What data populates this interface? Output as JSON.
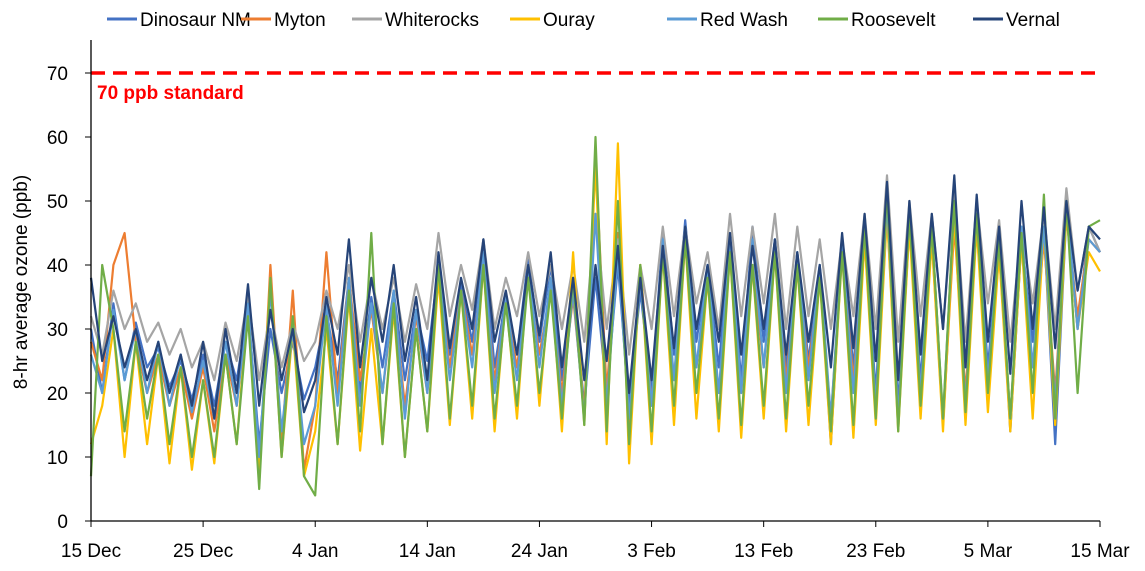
{
  "chart_data": {
    "type": "line",
    "title": "",
    "xlabel": "",
    "ylabel": "8-hr average ozone (ppb)",
    "ylim": [
      0,
      70
    ],
    "yticks": [
      0,
      10,
      20,
      30,
      40,
      50,
      60,
      70
    ],
    "xticks": [
      "15 Dec",
      "25 Dec",
      "4 Jan",
      "14 Jan",
      "24 Jan",
      "3 Feb",
      "13 Feb",
      "23 Feb",
      "5 Mar",
      "15 Mar"
    ],
    "grid": false,
    "legend_position": "top",
    "reference_line": {
      "value": 70,
      "label": "70 ppb standard",
      "color": "#FF0000",
      "style": "dashed"
    },
    "x": [
      "15 Dec",
      "16 Dec",
      "17 Dec",
      "18 Dec",
      "19 Dec",
      "20 Dec",
      "21 Dec",
      "22 Dec",
      "23 Dec",
      "24 Dec",
      "25 Dec",
      "26 Dec",
      "27 Dec",
      "28 Dec",
      "29 Dec",
      "30 Dec",
      "31 Dec",
      "1 Jan",
      "2 Jan",
      "3 Jan",
      "4 Jan",
      "5 Jan",
      "6 Jan",
      "7 Jan",
      "8 Jan",
      "9 Jan",
      "10 Jan",
      "11 Jan",
      "12 Jan",
      "13 Jan",
      "14 Jan",
      "15 Jan",
      "16 Jan",
      "17 Jan",
      "18 Jan",
      "19 Jan",
      "20 Jan",
      "21 Jan",
      "22 Jan",
      "23 Jan",
      "24 Jan",
      "25 Jan",
      "26 Jan",
      "27 Jan",
      "28 Jan",
      "29 Jan",
      "30 Jan",
      "31 Jan",
      "1 Feb",
      "2 Feb",
      "3 Feb",
      "4 Feb",
      "5 Feb",
      "6 Feb",
      "7 Feb",
      "8 Feb",
      "9 Feb",
      "10 Feb",
      "11 Feb",
      "12 Feb",
      "13 Feb",
      "14 Feb",
      "15 Feb",
      "16 Feb",
      "17 Feb",
      "18 Feb",
      "19 Feb",
      "20 Feb",
      "21 Feb",
      "22 Feb",
      "23 Feb",
      "24 Feb",
      "25 Feb",
      "26 Feb",
      "27 Feb",
      "28 Feb",
      "1 Mar",
      "2 Mar",
      "3 Mar",
      "4 Mar",
      "5 Mar",
      "6 Mar",
      "7 Mar",
      "8 Mar",
      "9 Mar",
      "10 Mar",
      "11 Mar",
      "12 Mar",
      "13 Mar",
      "14 Mar",
      "15 Mar"
    ],
    "series": [
      {
        "name": "Dinosaur NM",
        "color": "#4472C4",
        "values": [
          30,
          20,
          34,
          22,
          31,
          24,
          27,
          21,
          25,
          19,
          26,
          18,
          28,
          22,
          33,
          12,
          30,
          20,
          28,
          19,
          24,
          33,
          22,
          38,
          20,
          35,
          24,
          36,
          22,
          33,
          25,
          40,
          26,
          37,
          28,
          44,
          24,
          35,
          26,
          41,
          28,
          40,
          22,
          36,
          18,
          38,
          20,
          40,
          18,
          36,
          20,
          45,
          26,
          47,
          28,
          40,
          24,
          44,
          22,
          46,
          28,
          44,
          24,
          42,
          25,
          40,
          12,
          43,
          24,
          46,
          20,
          52,
          18,
          48,
          22,
          46,
          15,
          50,
          16,
          48,
          24,
          44,
          14,
          44,
          28,
          46,
          12,
          48,
          30,
          46,
          42
        ]
      },
      {
        "name": "Myton",
        "color": "#ED7D31",
        "values": [
          28,
          22,
          40,
          45,
          28,
          20,
          26,
          18,
          24,
          16,
          24,
          14,
          26,
          18,
          35,
          6,
          40,
          12,
          36,
          8,
          18,
          42,
          20,
          38,
          22,
          33,
          20,
          35,
          18,
          32,
          20,
          38,
          24,
          36,
          26,
          40,
          22,
          34,
          24,
          38,
          26,
          36,
          20,
          35,
          17,
          57,
          20,
          45,
          15,
          40,
          18,
          42,
          22,
          44,
          24,
          38,
          20,
          42,
          20,
          40,
          24,
          42,
          22,
          40,
          24,
          38,
          16,
          42,
          22,
          44,
          18,
          48,
          16,
          46,
          20,
          44,
          15,
          46,
          20,
          46,
          20,
          42,
          16,
          44,
          24,
          44,
          20,
          48,
          32,
          44,
          42
        ]
      },
      {
        "name": "Whiterocks",
        "color": "#A5A5A5",
        "values": [
          32,
          26,
          36,
          30,
          34,
          28,
          31,
          26,
          30,
          24,
          28,
          22,
          31,
          25,
          35,
          22,
          33,
          24,
          31,
          25,
          28,
          36,
          30,
          40,
          28,
          38,
          30,
          38,
          28,
          37,
          30,
          45,
          32,
          40,
          33,
          44,
          30,
          38,
          32,
          42,
          32,
          40,
          30,
          40,
          28,
          48,
          30,
          44,
          26,
          40,
          30,
          46,
          32,
          46,
          34,
          42,
          30,
          48,
          32,
          46,
          34,
          48,
          30,
          46,
          32,
          44,
          30,
          44,
          32,
          48,
          30,
          54,
          28,
          50,
          32,
          48,
          30,
          52,
          28,
          50,
          34,
          47,
          28,
          46,
          34,
          48,
          30,
          52,
          36,
          46,
          42
        ]
      },
      {
        "name": "Ouray",
        "color": "#FFC000",
        "values": [
          12,
          18,
          30,
          10,
          28,
          12,
          26,
          9,
          24,
          8,
          22,
          9,
          26,
          12,
          34,
          8,
          38,
          10,
          30,
          7,
          14,
          30,
          12,
          35,
          11,
          30,
          12,
          33,
          10,
          30,
          14,
          38,
          15,
          36,
          16,
          40,
          14,
          35,
          16,
          40,
          18,
          38,
          14,
          42,
          15,
          56,
          12,
          59,
          9,
          40,
          12,
          42,
          15,
          44,
          16,
          38,
          14,
          42,
          13,
          40,
          16,
          42,
          14,
          40,
          15,
          38,
          12,
          42,
          13,
          44,
          15,
          48,
          14,
          46,
          16,
          44,
          14,
          48,
          15,
          46,
          17,
          42,
          14,
          44,
          16,
          46,
          15,
          48,
          30,
          42,
          39
        ]
      },
      {
        "name": "Red Wash",
        "color": "#5B9BD5",
        "values": [
          26,
          20,
          33,
          22,
          30,
          20,
          28,
          18,
          26,
          17,
          25,
          16,
          28,
          18,
          34,
          10,
          36,
          14,
          30,
          12,
          18,
          34,
          18,
          38,
          18,
          34,
          20,
          36,
          16,
          33,
          20,
          40,
          22,
          36,
          24,
          42,
          20,
          35,
          22,
          40,
          24,
          38,
          18,
          36,
          16,
          48,
          18,
          42,
          16,
          38,
          18,
          44,
          22,
          46,
          24,
          40,
          20,
          44,
          20,
          44,
          24,
          44,
          20,
          42,
          22,
          40,
          16,
          43,
          20,
          46,
          18,
          50,
          16,
          48,
          20,
          46,
          16,
          50,
          18,
          48,
          22,
          44,
          16,
          46,
          24,
          46,
          18,
          50,
          30,
          44,
          42
        ]
      },
      {
        "name": "Roosevelt",
        "color": "#70AD47",
        "values": [
          7,
          40,
          30,
          14,
          28,
          16,
          26,
          12,
          24,
          10,
          22,
          10,
          26,
          12,
          32,
          5,
          38,
          10,
          32,
          7,
          4,
          32,
          12,
          36,
          14,
          45,
          12,
          34,
          10,
          30,
          14,
          40,
          16,
          36,
          18,
          40,
          16,
          34,
          18,
          38,
          20,
          36,
          16,
          38,
          15,
          60,
          14,
          50,
          12,
          40,
          14,
          42,
          18,
          44,
          20,
          38,
          16,
          42,
          15,
          40,
          18,
          42,
          16,
          40,
          18,
          38,
          14,
          42,
          15,
          46,
          16,
          52,
          14,
          48,
          18,
          46,
          16,
          50,
          17,
          48,
          20,
          44,
          16,
          45,
          20,
          51,
          16,
          50,
          20,
          46,
          47
        ]
      },
      {
        "name": "Vernal",
        "color": "#264478",
        "values": [
          38,
          25,
          32,
          24,
          30,
          22,
          28,
          20,
          26,
          18,
          28,
          16,
          30,
          20,
          37,
          18,
          33,
          22,
          30,
          17,
          22,
          35,
          26,
          44,
          24,
          38,
          28,
          40,
          25,
          35,
          22,
          42,
          27,
          38,
          30,
          44,
          28,
          36,
          26,
          40,
          29,
          42,
          24,
          38,
          22,
          40,
          25,
          43,
          20,
          38,
          22,
          43,
          27,
          46,
          30,
          40,
          28,
          45,
          26,
          43,
          30,
          44,
          26,
          42,
          28,
          40,
          24,
          45,
          27,
          48,
          25,
          53,
          22,
          50,
          26,
          48,
          30,
          54,
          24,
          51,
          28,
          46,
          23,
          50,
          30,
          49,
          27,
          50,
          36,
          46,
          44
        ]
      }
    ]
  }
}
